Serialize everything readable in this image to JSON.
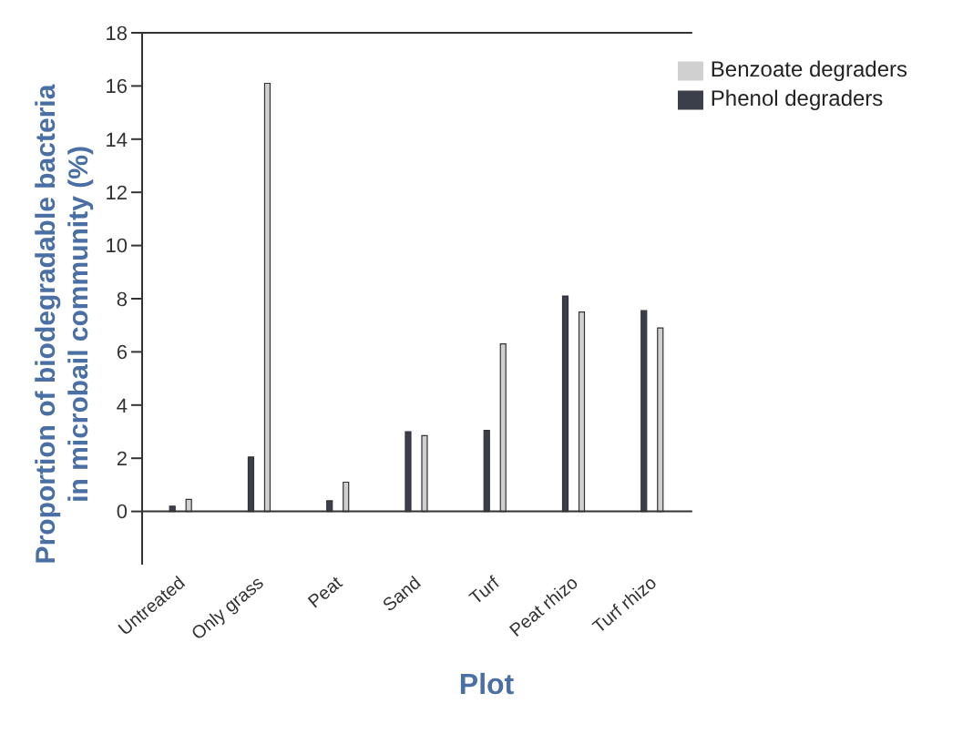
{
  "chart_data": {
    "type": "bar",
    "xlabel": "Plot",
    "ylabel": "Proportion of biodegradable bacteria\nin microbail community (%)",
    "categories": [
      "Untreated",
      "Only grass",
      "Peat",
      "Sand",
      "Turf",
      "Peat rhizo",
      "Turf rhizo"
    ],
    "series": [
      {
        "name": "Phenol degraders",
        "color": "#3a3f4a",
        "values": [
          0.2,
          2.05,
          0.4,
          3.0,
          3.05,
          8.1,
          7.55
        ]
      },
      {
        "name": "Benzoate degraders",
        "color": "#d0d0d0",
        "values": [
          0.45,
          16.1,
          1.1,
          2.85,
          6.3,
          7.5,
          6.9
        ]
      }
    ],
    "ylim": [
      -2,
      18
    ],
    "yticks": [
      0,
      2,
      4,
      6,
      8,
      10,
      12,
      14,
      16,
      18
    ],
    "ref_lines": [
      {
        "axis": "y",
        "value": 0
      }
    ],
    "legend": "top right",
    "grid": false
  }
}
